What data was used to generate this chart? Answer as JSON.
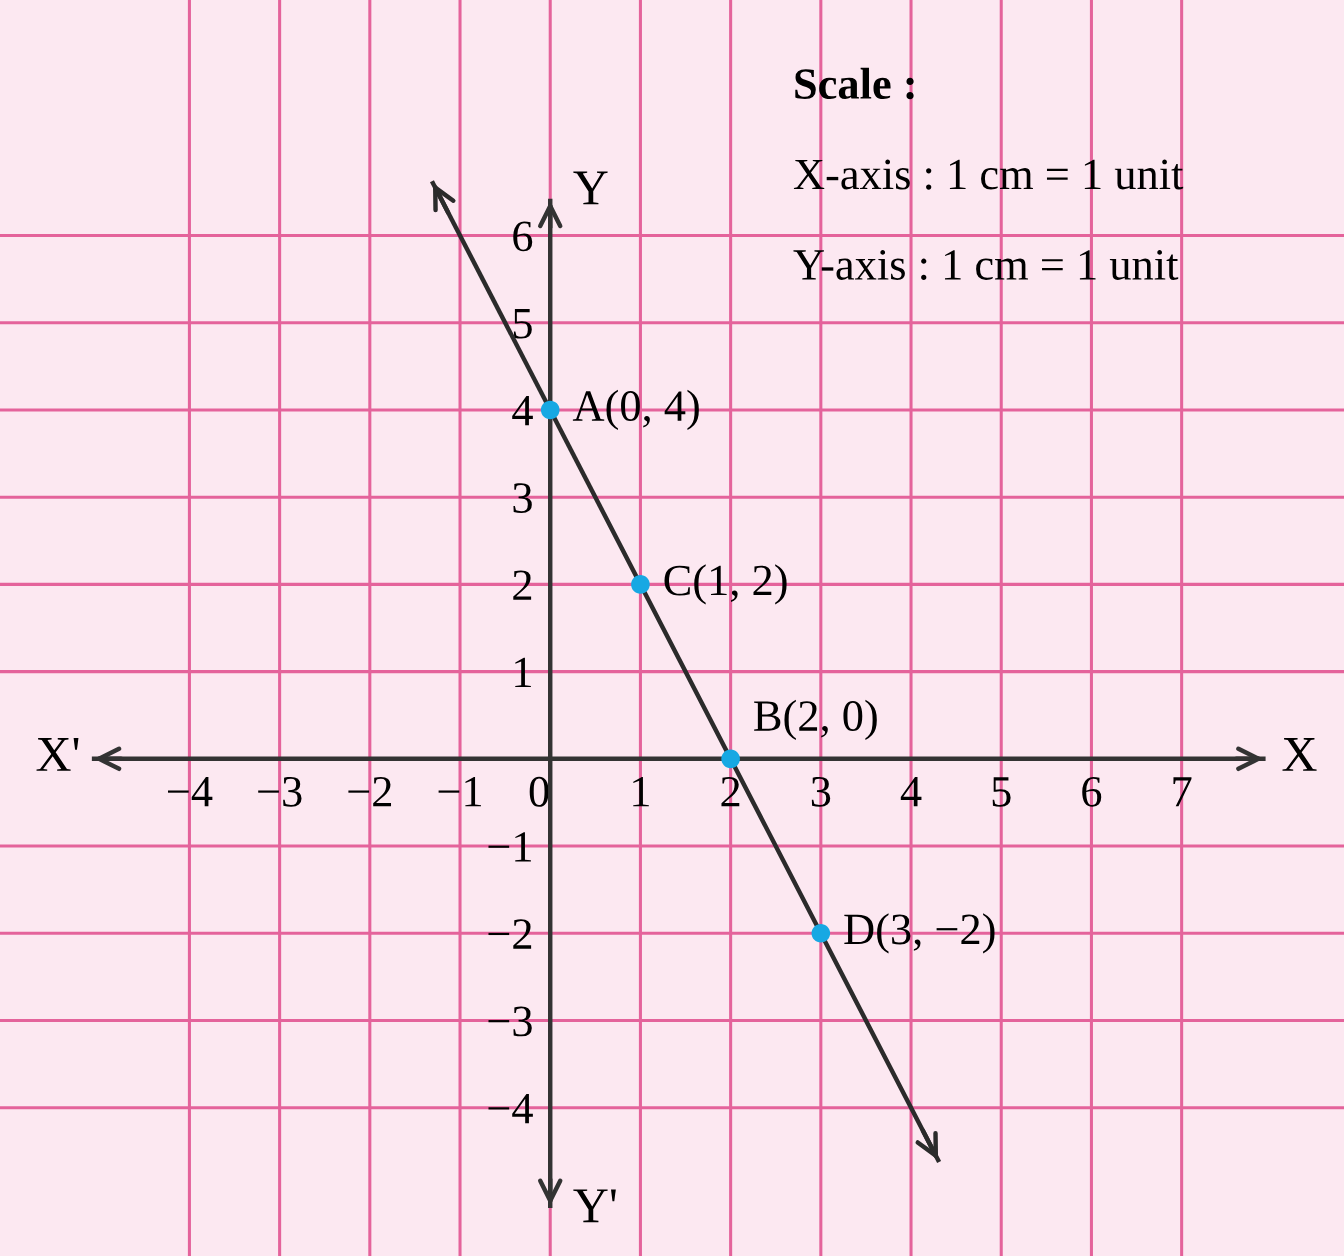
{
  "chart_data": {
    "type": "line",
    "xlabel": "X",
    "ylabel": "Y",
    "xlim": [
      -6.1,
      8.8
    ],
    "ylim": [
      -5.7,
      8.7
    ],
    "xticks": [
      -4,
      -3,
      -2,
      -1,
      0,
      1,
      2,
      3,
      4,
      5,
      6,
      7
    ],
    "yticks": [
      -4,
      -3,
      -2,
      -1,
      1,
      2,
      3,
      4,
      5,
      6
    ],
    "grid": true,
    "series": [
      {
        "color": "#2b2b2b",
        "x": [
          -1.3,
          4.3
        ],
        "values": [
          6.6,
          -4.6
        ]
      },
      {
        "type": "scatter",
        "color": "#17a8e3",
        "marker": "circle",
        "x": [
          0,
          1,
          2,
          3
        ],
        "values": [
          4,
          2,
          0,
          -2
        ],
        "value_labels": [
          "A(0, 4)",
          "C(1, 2)",
          "B(2, 0)",
          "D(3, −2)"
        ]
      }
    ],
    "annotations": [
      "X'",
      "Y'",
      "Scale :",
      "X-axis : 1 cm = 1 unit",
      "Y-axis : 1 cm = 1 unit"
    ]
  }
}
